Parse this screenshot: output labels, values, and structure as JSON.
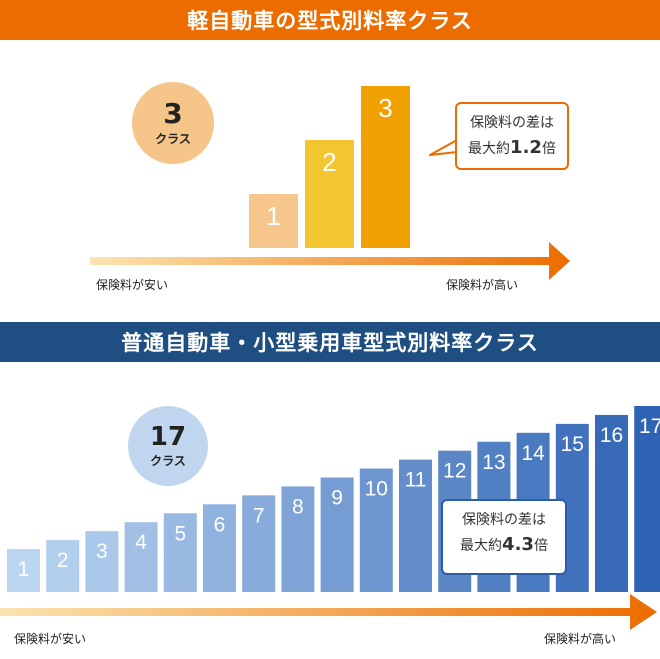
{
  "top": {
    "title": "軽自動車の型式別料率クラス",
    "color": "#ec6c00",
    "badge": {
      "num": "3",
      "unit": "クラス",
      "color": "#f6c58a"
    },
    "callout": {
      "line1": "保険料の差は",
      "prefix": "最大約",
      "factor": "1.2",
      "suffix": "倍",
      "border": "#ec6c00"
    },
    "low_label": "保険料が安い",
    "high_label": "保険料が高い",
    "arrow_from": "#fbe4b0",
    "arrow_to": "#ec6c00"
  },
  "bottom": {
    "title": "普通自動車・小型乗用車型式別料率クラス",
    "color": "#1f4e82",
    "badge": {
      "num": "17",
      "unit": "クラス",
      "color": "#bfd6ee"
    },
    "callout": {
      "line1": "保険料の差は",
      "prefix": "最大約",
      "factor": "4.3",
      "suffix": "倍",
      "border": "#2d5da8"
    },
    "low_label": "保険料が安い",
    "high_label": "保険料が高い",
    "arrow_from": "#fbe4b0",
    "arrow_to": "#ec6c00"
  },
  "chart_data": [
    {
      "type": "bar",
      "title": "軽自動車の型式別料率クラス",
      "categories": [
        "1",
        "2",
        "3"
      ],
      "values": [
        1,
        2,
        3
      ],
      "colors": [
        "#f6c68d",
        "#f2c531",
        "#f0a000"
      ]
    },
    {
      "type": "bar",
      "title": "普通自動車・小型乗用車型式別料率クラス",
      "categories": [
        "1",
        "2",
        "3",
        "4",
        "5",
        "6",
        "7",
        "8",
        "9",
        "10",
        "11",
        "12",
        "13",
        "14",
        "15",
        "16",
        "17"
      ],
      "values": [
        1,
        2,
        3,
        4,
        5,
        6,
        7,
        8,
        9,
        10,
        11,
        12,
        13,
        14,
        15,
        16,
        17
      ],
      "color_from": "#bcd6f2",
      "color_to": "#2f63b4"
    }
  ]
}
